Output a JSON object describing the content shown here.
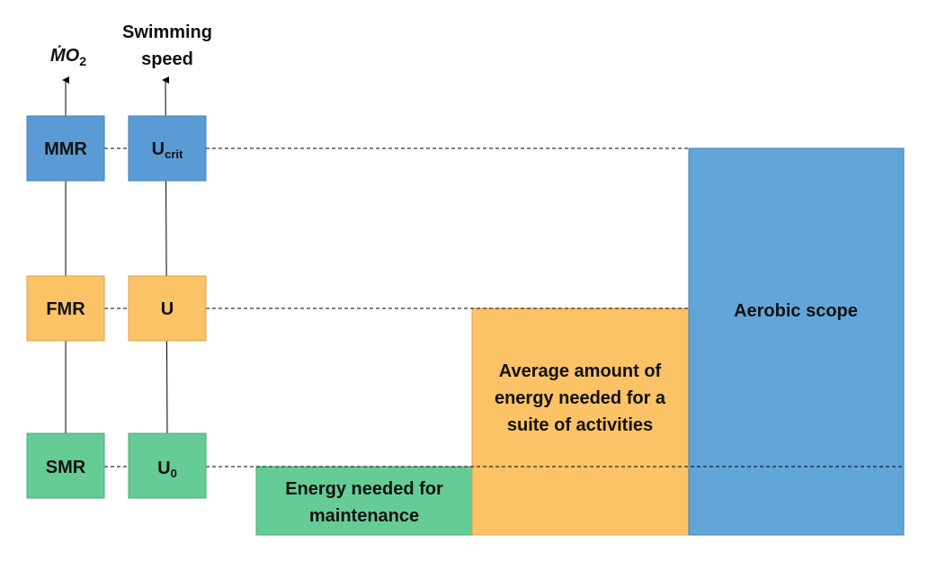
{
  "axes": {
    "mo2": {
      "label": "ṀO",
      "subscript": "2"
    },
    "speed": {
      "label_line1": "Swimming",
      "label_line2": "speed"
    }
  },
  "levels": {
    "max": {
      "rate": "MMR",
      "speed": "U",
      "speed_subscript": "crit",
      "color": "#5B9BD5"
    },
    "field": {
      "rate": "FMR",
      "speed": "U",
      "speed_subscript": "",
      "color": "#FBC266"
    },
    "standard": {
      "rate": "SMR",
      "speed": "U",
      "speed_subscript": "0",
      "color": "#66CC96"
    }
  },
  "blocks": {
    "maintenance": {
      "line1": "Energy needed for",
      "line2": "maintenance",
      "color": "#66CC96"
    },
    "activities": {
      "line1": "Average amount of",
      "line2": "energy needed for a",
      "line3": "suite of activities",
      "color": "#FBC266"
    },
    "scope": {
      "line1": "Aerobic scope",
      "color": "#62A6D9"
    }
  }
}
